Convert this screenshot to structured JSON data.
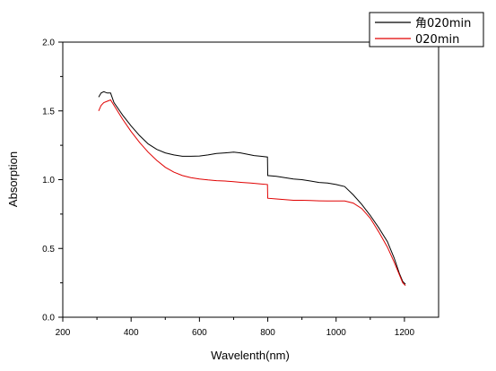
{
  "chart_data": {
    "type": "line",
    "title": "",
    "xlabel": "Wavelenth(nm)",
    "ylabel": "Absorption",
    "xlim": [
      200,
      1300
    ],
    "ylim": [
      0.0,
      2.0
    ],
    "x_ticks": [
      200,
      400,
      600,
      800,
      1000,
      1200
    ],
    "x_tick_labels": [
      "200",
      "400",
      "600",
      "800",
      "1000",
      "1200"
    ],
    "y_ticks": [
      0.0,
      0.5,
      1.0,
      1.5,
      2.0
    ],
    "y_tick_labels": [
      "0.0",
      "0.5",
      "1.0",
      "1.5",
      "2.0"
    ],
    "grid": false,
    "legend_position": "top-right",
    "series": [
      {
        "name": "角020min",
        "color": "#000000",
        "points": [
          [
            305,
            1.6
          ],
          [
            312,
            1.63
          ],
          [
            320,
            1.64
          ],
          [
            330,
            1.63
          ],
          [
            340,
            1.63
          ],
          [
            350,
            1.56
          ],
          [
            375,
            1.47
          ],
          [
            400,
            1.39
          ],
          [
            425,
            1.32
          ],
          [
            450,
            1.26
          ],
          [
            475,
            1.22
          ],
          [
            500,
            1.195
          ],
          [
            525,
            1.18
          ],
          [
            550,
            1.17
          ],
          [
            575,
            1.17
          ],
          [
            600,
            1.172
          ],
          [
            625,
            1.18
          ],
          [
            650,
            1.19
          ],
          [
            675,
            1.195
          ],
          [
            700,
            1.2
          ],
          [
            720,
            1.195
          ],
          [
            740,
            1.185
          ],
          [
            760,
            1.175
          ],
          [
            780,
            1.17
          ],
          [
            799,
            1.165
          ],
          [
            800,
            1.03
          ],
          [
            825,
            1.025
          ],
          [
            850,
            1.015
          ],
          [
            875,
            1.005
          ],
          [
            900,
            1.0
          ],
          [
            925,
            0.99
          ],
          [
            950,
            0.98
          ],
          [
            975,
            0.975
          ],
          [
            1000,
            0.965
          ],
          [
            1025,
            0.95
          ],
          [
            1050,
            0.89
          ],
          [
            1075,
            0.82
          ],
          [
            1100,
            0.74
          ],
          [
            1125,
            0.65
          ],
          [
            1150,
            0.55
          ],
          [
            1170,
            0.43
          ],
          [
            1185,
            0.32
          ],
          [
            1195,
            0.26
          ],
          [
            1203,
            0.24
          ]
        ]
      },
      {
        "name": "020min",
        "color": "#e00000",
        "points": [
          [
            305,
            1.5
          ],
          [
            312,
            1.54
          ],
          [
            320,
            1.56
          ],
          [
            330,
            1.57
          ],
          [
            340,
            1.58
          ],
          [
            350,
            1.54
          ],
          [
            375,
            1.44
          ],
          [
            400,
            1.35
          ],
          [
            425,
            1.27
          ],
          [
            450,
            1.2
          ],
          [
            475,
            1.14
          ],
          [
            500,
            1.09
          ],
          [
            525,
            1.055
          ],
          [
            550,
            1.03
          ],
          [
            575,
            1.015
          ],
          [
            600,
            1.005
          ],
          [
            625,
            0.998
          ],
          [
            650,
            0.993
          ],
          [
            675,
            0.99
          ],
          [
            700,
            0.985
          ],
          [
            725,
            0.98
          ],
          [
            750,
            0.975
          ],
          [
            775,
            0.97
          ],
          [
            799,
            0.965
          ],
          [
            800,
            0.865
          ],
          [
            825,
            0.86
          ],
          [
            850,
            0.855
          ],
          [
            875,
            0.85
          ],
          [
            900,
            0.85
          ],
          [
            925,
            0.848
          ],
          [
            950,
            0.846
          ],
          [
            975,
            0.845
          ],
          [
            1000,
            0.845
          ],
          [
            1025,
            0.845
          ],
          [
            1050,
            0.83
          ],
          [
            1075,
            0.79
          ],
          [
            1100,
            0.72
          ],
          [
            1125,
            0.62
          ],
          [
            1150,
            0.51
          ],
          [
            1170,
            0.4
          ],
          [
            1185,
            0.31
          ],
          [
            1195,
            0.25
          ],
          [
            1203,
            0.23
          ]
        ]
      }
    ]
  }
}
